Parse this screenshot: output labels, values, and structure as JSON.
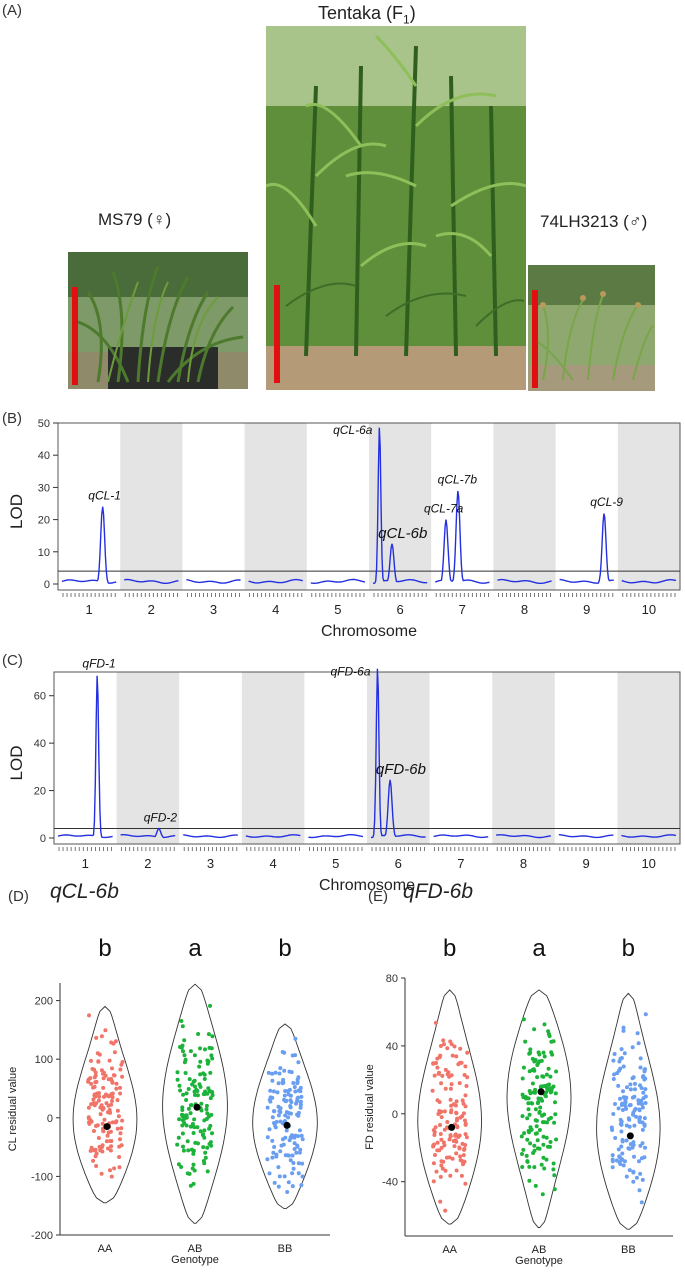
{
  "panel_a": {
    "label": "(A)",
    "photos": [
      {
        "name": "MS79",
        "sex": "♀",
        "title": "MS79 (♀)"
      },
      {
        "name": "Tentaka",
        "title_main": "Tentaka (F",
        "title_sub": "1",
        "title_end": ")"
      },
      {
        "name": "74LH3213",
        "sex": "♂",
        "title": "74LH3213 (♂)"
      }
    ]
  },
  "chart_data": [
    {
      "id": "B",
      "label": "(B)",
      "type": "line",
      "xlabel": "Chromosome",
      "ylabel": "LOD",
      "ylim": [
        0,
        50
      ],
      "yticks": [
        0,
        10,
        20,
        30,
        40,
        50
      ],
      "chromosomes": [
        "1",
        "2",
        "3",
        "4",
        "5",
        "6",
        "7",
        "8",
        "9",
        "10"
      ],
      "threshold": 4,
      "peaks": [
        {
          "label": "qCL-1",
          "chr": 1,
          "pos": 0.75,
          "lod": 24
        },
        {
          "label": "qCL-6a",
          "chr": 6,
          "pos": 0.12,
          "lod": 49
        },
        {
          "label": "qCL-6b",
          "chr": 6,
          "pos": 0.35,
          "lod": 12.5
        },
        {
          "label": "qCL-7a",
          "chr": 7,
          "pos": 0.2,
          "lod": 20
        },
        {
          "label": "qCL-7b",
          "chr": 7,
          "pos": 0.42,
          "lod": 29
        },
        {
          "label": "qCL-9",
          "chr": 9,
          "pos": 0.82,
          "lod": 22
        }
      ]
    },
    {
      "id": "C",
      "label": "(C)",
      "type": "line",
      "xlabel": "Chromosome",
      "ylabel": "LOD",
      "ylim": [
        0,
        70
      ],
      "yticks": [
        0,
        20,
        40,
        60
      ],
      "chromosomes": [
        "1",
        "2",
        "3",
        "4",
        "5",
        "6",
        "7",
        "8",
        "9",
        "10"
      ],
      "threshold": 4,
      "peaks": [
        {
          "label": "qFD-1",
          "chr": 1,
          "pos": 0.72,
          "lod": 69
        },
        {
          "label": "qFD-2",
          "chr": 2,
          "pos": 0.7,
          "lod": 4
        },
        {
          "label": "qFD-6a",
          "chr": 6,
          "pos": 0.12,
          "lod": 72
        },
        {
          "label": "qFD-6b",
          "chr": 6,
          "pos": 0.35,
          "lod": 24.5
        }
      ]
    },
    {
      "id": "D",
      "label": "(D)",
      "title": "qCL-6b",
      "type": "scatter",
      "xlabel": "Genotype",
      "ylabel": "CL residual value",
      "ylim": [
        -200,
        230
      ],
      "yticks": [
        -200,
        -100,
        0,
        100,
        200
      ],
      "categories": [
        "AA",
        "AB",
        "BB"
      ],
      "letters": [
        "b",
        "a",
        "b"
      ],
      "colors": [
        "#f07468",
        "#1db33a",
        "#6a9ef0"
      ],
      "means": [
        -15,
        18,
        -13
      ],
      "ranges": [
        [
          -145,
          190
        ],
        [
          -180,
          228
        ],
        [
          -155,
          160
        ]
      ]
    },
    {
      "id": "E",
      "label": "(E)",
      "title": "qFD-6b",
      "type": "scatter",
      "xlabel": "Genotype",
      "ylabel": "FD residual value",
      "ylim": [
        -72,
        80
      ],
      "yticks": [
        -40,
        0,
        40,
        80
      ],
      "categories": [
        "AA",
        "AB",
        "BB"
      ],
      "letters": [
        "b",
        "a",
        "b"
      ],
      "colors": [
        "#f07468",
        "#1db33a",
        "#6a9ef0"
      ],
      "means": [
        -8,
        13,
        -13
      ],
      "ranges": [
        [
          -65,
          73
        ],
        [
          -67,
          73
        ],
        [
          -68,
          71
        ]
      ]
    }
  ]
}
